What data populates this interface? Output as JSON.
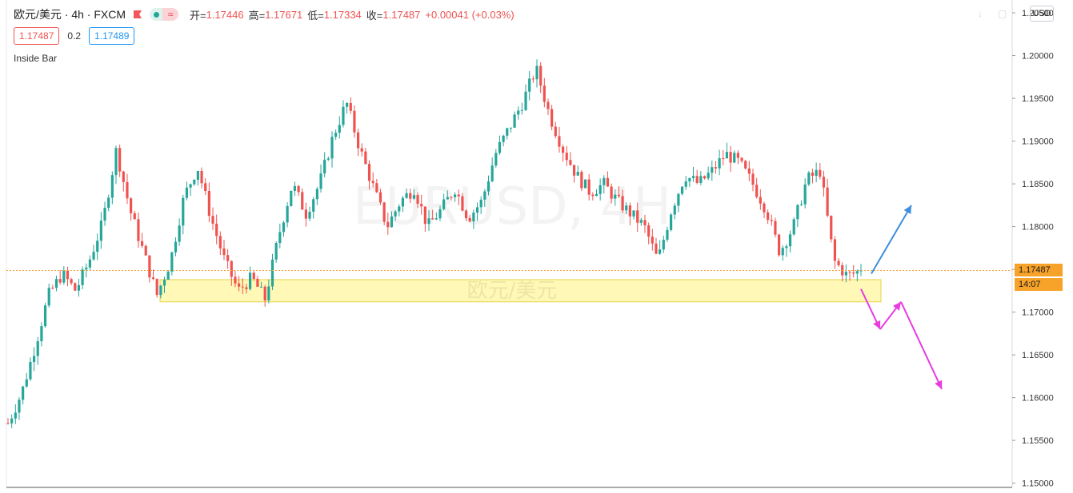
{
  "header": {
    "symbol": "欧元/美元 · 4h · FXCM",
    "ohlc": [
      {
        "key": "开=",
        "value": "1.17446"
      },
      {
        "key": "高=",
        "value": "1.17671"
      },
      {
        "key": "低=",
        "value": "1.17334"
      },
      {
        "key": "收=",
        "value": "1.17487"
      },
      {
        "key": "",
        "value": "+0.00041 (+0.03%)"
      }
    ],
    "sell_price": "1.17487",
    "spread": "0.2",
    "buy_price": "1.17489",
    "study_label": "Inside Bar",
    "currency_button": "USD",
    "pill_wave": "≈",
    "colors": {
      "up": "#26a69a",
      "down": "#ef5350",
      "price_line": "#f7a228"
    }
  },
  "price_tags": {
    "last_price": "1.17487",
    "countdown": "14:07"
  },
  "watermark": {
    "symbol_text": "EURUSD, 4H",
    "name_text": "欧元/美元"
  },
  "chart_data": {
    "type": "candlestick",
    "title": "欧元/美元 · 4h · FXCM",
    "ylim": [
      1.1495,
      1.2065
    ],
    "y_ticks": [
      "1.20500",
      "1.20000",
      "1.19500",
      "1.19000",
      "1.18500",
      "1.18000",
      "1.17500",
      "1.17000",
      "1.16500",
      "1.16000",
      "1.15500",
      "1.15000"
    ],
    "last_price": 1.17487,
    "support_zone": {
      "low": 1.1712,
      "high": 1.1738
    },
    "close_path": [
      1.157,
      1.1605,
      1.166,
      1.172,
      1.1745,
      1.1725,
      1.176,
      1.1805,
      1.189,
      1.182,
      1.177,
      1.172,
      1.176,
      1.1835,
      1.187,
      1.181,
      1.176,
      1.1725,
      1.174,
      1.1715,
      1.179,
      1.185,
      1.1815,
      1.185,
      1.1905,
      1.1945,
      1.189,
      1.1845,
      1.18,
      1.183,
      1.1845,
      1.18,
      1.182,
      1.1845,
      1.181,
      1.183,
      1.1885,
      1.1915,
      1.1945,
      1.1985,
      1.193,
      1.189,
      1.186,
      1.184,
      1.185,
      1.183,
      1.1815,
      1.18,
      1.176,
      1.182,
      1.186,
      1.185,
      1.1865,
      1.1885,
      1.1875,
      1.185,
      1.182,
      1.177,
      1.18,
      1.1855,
      1.1865,
      1.176,
      1.1742,
      1.17487
    ],
    "projections": [
      {
        "name": "bullish",
        "color": "#3c8ee0",
        "points": [
          [
            1.1745,
            1.1745
          ],
          [
            1.1825,
            1.1825
          ]
        ]
      },
      {
        "name": "bearish",
        "color": "#e83be0",
        "points": [
          [
            1.1727,
            1.1727
          ],
          [
            1.168,
            1.168
          ],
          [
            1.1712,
            1.1712
          ],
          [
            1.161,
            1.161
          ]
        ]
      }
    ]
  }
}
